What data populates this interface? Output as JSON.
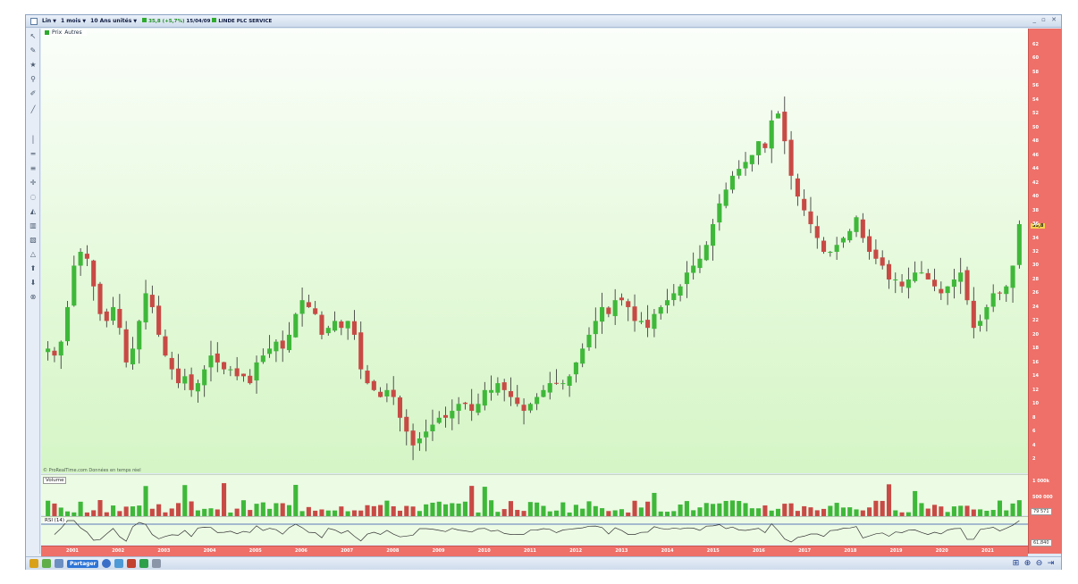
{
  "titlebar": {
    "symbol": "Lin",
    "period": "1 mois",
    "units": "10 Ans unités",
    "status_values": "35,8 (+5,7%)",
    "status_time": "15/04/09",
    "status_name": "LINDE PLC SERVICE"
  },
  "legend": {
    "label1": "Prix",
    "label2": "Autres"
  },
  "price_axis": {
    "labels": [
      "62",
      "60",
      "58",
      "56",
      "54",
      "52",
      "50",
      "48",
      "46",
      "44",
      "42",
      "40",
      "38",
      "36",
      "34",
      "32",
      "30",
      "28",
      "26",
      "24",
      "22",
      "20",
      "18",
      "16",
      "14",
      "12",
      "10",
      "8",
      "6",
      "4",
      "2"
    ],
    "current": "35,8"
  },
  "volume": {
    "legend": "Volume",
    "subtitle": "© ProRealTime.com Données en temps réel",
    "axis_top": "1 000k",
    "axis_mid": "500 000",
    "axis_box": "79 571"
  },
  "rsi": {
    "legend": "RSI (14)",
    "axis_box": "61,840"
  },
  "date_axis": {
    "labels": [
      "2001",
      "2002",
      "2003",
      "2004",
      "2005",
      "2006",
      "2007",
      "2008",
      "2009",
      "2010",
      "2011",
      "2012",
      "2013",
      "2014",
      "2015",
      "2016",
      "2017",
      "2018",
      "2019",
      "2020",
      "2021"
    ]
  },
  "statusbar": {
    "share_label": "Partager"
  },
  "colors": {
    "up": "#3fb83a",
    "down": "#c84a45",
    "axis": "#ee7069"
  },
  "chart_data": {
    "type": "candlestick",
    "ylim": [
      1,
      63
    ],
    "x_start": "2000-07",
    "x_end": "2021-04",
    "closes": [
      18,
      17,
      19,
      24,
      30,
      32,
      31,
      27,
      23,
      22,
      24,
      21,
      16,
      18,
      22,
      26,
      24,
      20,
      17,
      15,
      13,
      14,
      12,
      13,
      15,
      17,
      16,
      15,
      15,
      14,
      14,
      13,
      16,
      17,
      18,
      19,
      18,
      20,
      23,
      25,
      24,
      23,
      20,
      21,
      22,
      21,
      22,
      20,
      15,
      13,
      12,
      11,
      12,
      11,
      8,
      6,
      4,
      5,
      6,
      7,
      8,
      8,
      9,
      10,
      10,
      9,
      10,
      12,
      12,
      13,
      12,
      11,
      10,
      9,
      10,
      11,
      12,
      13,
      13,
      13,
      14,
      16,
      18,
      20,
      22,
      24,
      23,
      25,
      25,
      24,
      22,
      22,
      21,
      23,
      24,
      25,
      26,
      27,
      29,
      30,
      31,
      33,
      36,
      39,
      41,
      43,
      44,
      45,
      46,
      48,
      47,
      51,
      52,
      48,
      43,
      40,
      38,
      36,
      34,
      32,
      32,
      33,
      34,
      35,
      37,
      34,
      32,
      31,
      30,
      28,
      28,
      27,
      28,
      29,
      29,
      28,
      27,
      26,
      27,
      28,
      29,
      25,
      21,
      22,
      24,
      26,
      26,
      27,
      30,
      36
    ]
  }
}
